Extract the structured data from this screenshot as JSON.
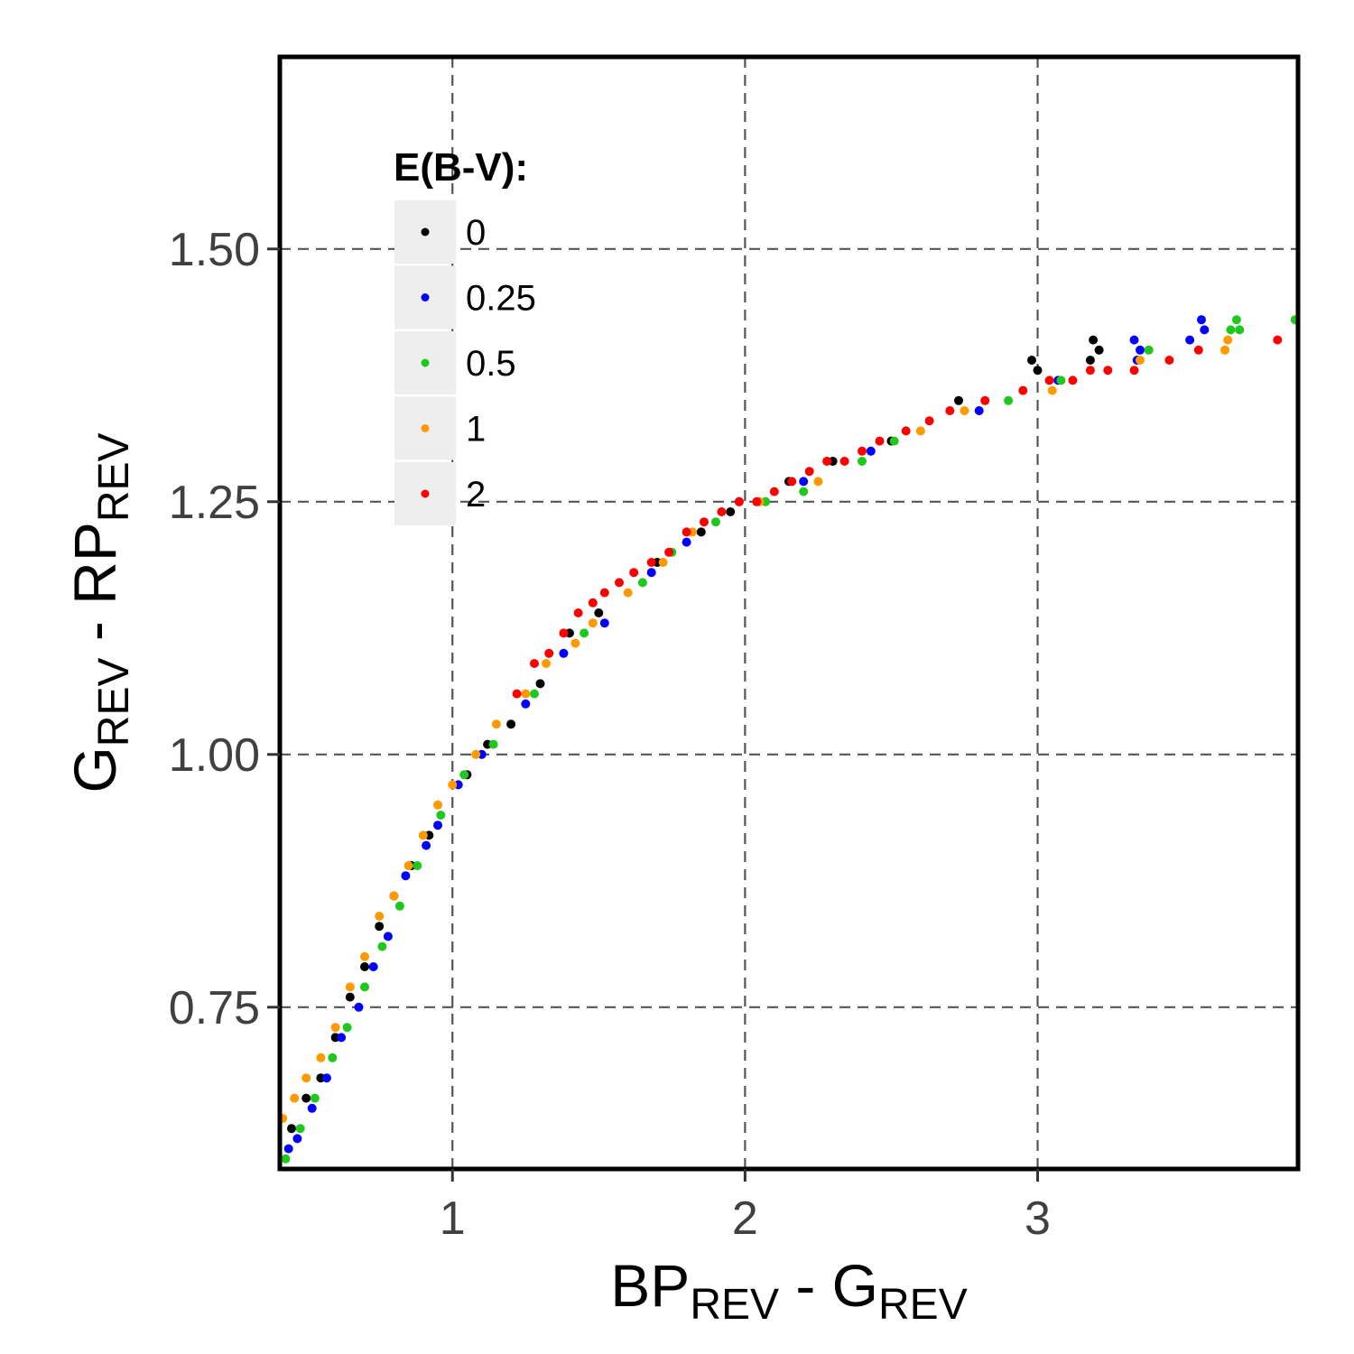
{
  "chart_data": {
    "type": "scatter",
    "title": "",
    "xlabel": {
      "main1": "BP",
      "sub1": "REV",
      "mid": " - G",
      "sub2": "REV"
    },
    "ylabel": {
      "main1": "G",
      "sub1": "REV",
      "mid": " - RP",
      "sub2": "REV"
    },
    "xlim": [
      0.41,
      3.89
    ],
    "ylim": [
      0.59,
      1.69
    ],
    "x_ticks": [
      {
        "value": 1,
        "label": "1"
      },
      {
        "value": 2,
        "label": "2"
      },
      {
        "value": 3,
        "label": "3"
      }
    ],
    "y_ticks": [
      {
        "value": 0.75,
        "label": "0.75"
      },
      {
        "value": 1.0,
        "label": "1.00"
      },
      {
        "value": 1.25,
        "label": "1.25"
      },
      {
        "value": 1.5,
        "label": "1.50"
      }
    ],
    "grid": true,
    "legend": {
      "title": "E(B-V):",
      "placement": "top-left"
    },
    "series": [
      {
        "name": "0",
        "color": "#000000",
        "points": [
          [
            0.45,
            0.63
          ],
          [
            0.5,
            0.66
          ],
          [
            0.55,
            0.68
          ],
          [
            0.6,
            0.72
          ],
          [
            0.65,
            0.76
          ],
          [
            0.7,
            0.79
          ],
          [
            0.75,
            0.83
          ],
          [
            0.8,
            0.86
          ],
          [
            0.86,
            0.89
          ],
          [
            0.92,
            0.92
          ],
          [
            1.05,
            0.98
          ],
          [
            1.12,
            1.01
          ],
          [
            1.2,
            1.03
          ],
          [
            1.3,
            1.07
          ],
          [
            1.4,
            1.12
          ],
          [
            1.5,
            1.14
          ],
          [
            1.7,
            1.19
          ],
          [
            1.85,
            1.22
          ],
          [
            1.95,
            1.24
          ],
          [
            2.15,
            1.27
          ],
          [
            2.3,
            1.29
          ],
          [
            2.5,
            1.31
          ],
          [
            2.73,
            1.35
          ],
          [
            2.98,
            1.39
          ],
          [
            3.0,
            1.38
          ],
          [
            3.18,
            1.39
          ],
          [
            3.19,
            1.41
          ],
          [
            3.21,
            1.4
          ]
        ]
      },
      {
        "name": "0.25",
        "color": "#0000ff",
        "points": [
          [
            0.44,
            0.61
          ],
          [
            0.47,
            0.62
          ],
          [
            0.52,
            0.65
          ],
          [
            0.57,
            0.68
          ],
          [
            0.62,
            0.72
          ],
          [
            0.68,
            0.75
          ],
          [
            0.73,
            0.79
          ],
          [
            0.78,
            0.82
          ],
          [
            0.84,
            0.88
          ],
          [
            0.91,
            0.91
          ],
          [
            0.95,
            0.93
          ],
          [
            1.02,
            0.97
          ],
          [
            1.1,
            1.0
          ],
          [
            1.25,
            1.05
          ],
          [
            1.38,
            1.1
          ],
          [
            1.52,
            1.13
          ],
          [
            1.68,
            1.18
          ],
          [
            1.8,
            1.21
          ],
          [
            1.98,
            1.25
          ],
          [
            2.2,
            1.27
          ],
          [
            2.43,
            1.3
          ],
          [
            2.8,
            1.34
          ],
          [
            3.07,
            1.37
          ],
          [
            3.33,
            1.41
          ],
          [
            3.34,
            1.39
          ],
          [
            3.35,
            1.4
          ],
          [
            3.52,
            1.41
          ],
          [
            3.56,
            1.43
          ],
          [
            3.57,
            1.42
          ]
        ]
      },
      {
        "name": "0.5",
        "color": "#1ec81e",
        "points": [
          [
            0.43,
            0.6
          ],
          [
            0.48,
            0.63
          ],
          [
            0.53,
            0.66
          ],
          [
            0.59,
            0.7
          ],
          [
            0.64,
            0.73
          ],
          [
            0.7,
            0.77
          ],
          [
            0.76,
            0.81
          ],
          [
            0.82,
            0.85
          ],
          [
            0.88,
            0.89
          ],
          [
            0.96,
            0.94
          ],
          [
            1.04,
            0.98
          ],
          [
            1.14,
            1.01
          ],
          [
            1.28,
            1.06
          ],
          [
            1.45,
            1.12
          ],
          [
            1.65,
            1.17
          ],
          [
            1.75,
            1.2
          ],
          [
            1.9,
            1.23
          ],
          [
            2.07,
            1.25
          ],
          [
            2.2,
            1.26
          ],
          [
            2.4,
            1.29
          ],
          [
            2.51,
            1.31
          ],
          [
            2.9,
            1.35
          ],
          [
            3.08,
            1.37
          ],
          [
            3.38,
            1.4
          ],
          [
            3.66,
            1.42
          ],
          [
            3.68,
            1.43
          ],
          [
            3.69,
            1.42
          ],
          [
            3.88,
            1.43
          ]
        ]
      },
      {
        "name": "1",
        "color": "#ff9900",
        "points": [
          [
            0.42,
            0.64
          ],
          [
            0.46,
            0.66
          ],
          [
            0.5,
            0.68
          ],
          [
            0.55,
            0.7
          ],
          [
            0.6,
            0.73
          ],
          [
            0.65,
            0.77
          ],
          [
            0.7,
            0.8
          ],
          [
            0.75,
            0.84
          ],
          [
            0.8,
            0.86
          ],
          [
            0.85,
            0.89
          ],
          [
            0.9,
            0.92
          ],
          [
            0.95,
            0.95
          ],
          [
            1.0,
            0.97
          ],
          [
            1.08,
            1.0
          ],
          [
            1.15,
            1.03
          ],
          [
            1.25,
            1.06
          ],
          [
            1.32,
            1.09
          ],
          [
            1.42,
            1.11
          ],
          [
            1.48,
            1.13
          ],
          [
            1.6,
            1.16
          ],
          [
            1.72,
            1.19
          ],
          [
            1.82,
            1.22
          ],
          [
            2.05,
            1.25
          ],
          [
            2.25,
            1.27
          ],
          [
            2.6,
            1.32
          ],
          [
            2.75,
            1.34
          ],
          [
            3.05,
            1.36
          ],
          [
            3.35,
            1.39
          ],
          [
            3.64,
            1.4
          ],
          [
            3.65,
            1.41
          ]
        ]
      },
      {
        "name": "2",
        "color": "#ff0000",
        "points": [
          [
            1.22,
            1.06
          ],
          [
            1.28,
            1.09
          ],
          [
            1.33,
            1.1
          ],
          [
            1.38,
            1.12
          ],
          [
            1.43,
            1.14
          ],
          [
            1.48,
            1.15
          ],
          [
            1.52,
            1.16
          ],
          [
            1.57,
            1.17
          ],
          [
            1.62,
            1.18
          ],
          [
            1.68,
            1.19
          ],
          [
            1.74,
            1.2
          ],
          [
            1.8,
            1.22
          ],
          [
            1.86,
            1.23
          ],
          [
            1.92,
            1.24
          ],
          [
            1.98,
            1.25
          ],
          [
            2.04,
            1.25
          ],
          [
            2.1,
            1.26
          ],
          [
            2.16,
            1.27
          ],
          [
            2.22,
            1.28
          ],
          [
            2.28,
            1.29
          ],
          [
            2.34,
            1.29
          ],
          [
            2.4,
            1.3
          ],
          [
            2.46,
            1.31
          ],
          [
            2.55,
            1.32
          ],
          [
            2.63,
            1.33
          ],
          [
            2.7,
            1.34
          ],
          [
            2.82,
            1.35
          ],
          [
            2.95,
            1.36
          ],
          [
            3.04,
            1.37
          ],
          [
            3.12,
            1.37
          ],
          [
            3.18,
            1.38
          ],
          [
            3.24,
            1.38
          ],
          [
            3.33,
            1.38
          ],
          [
            3.45,
            1.39
          ],
          [
            3.55,
            1.4
          ],
          [
            3.82,
            1.41
          ]
        ]
      }
    ]
  }
}
